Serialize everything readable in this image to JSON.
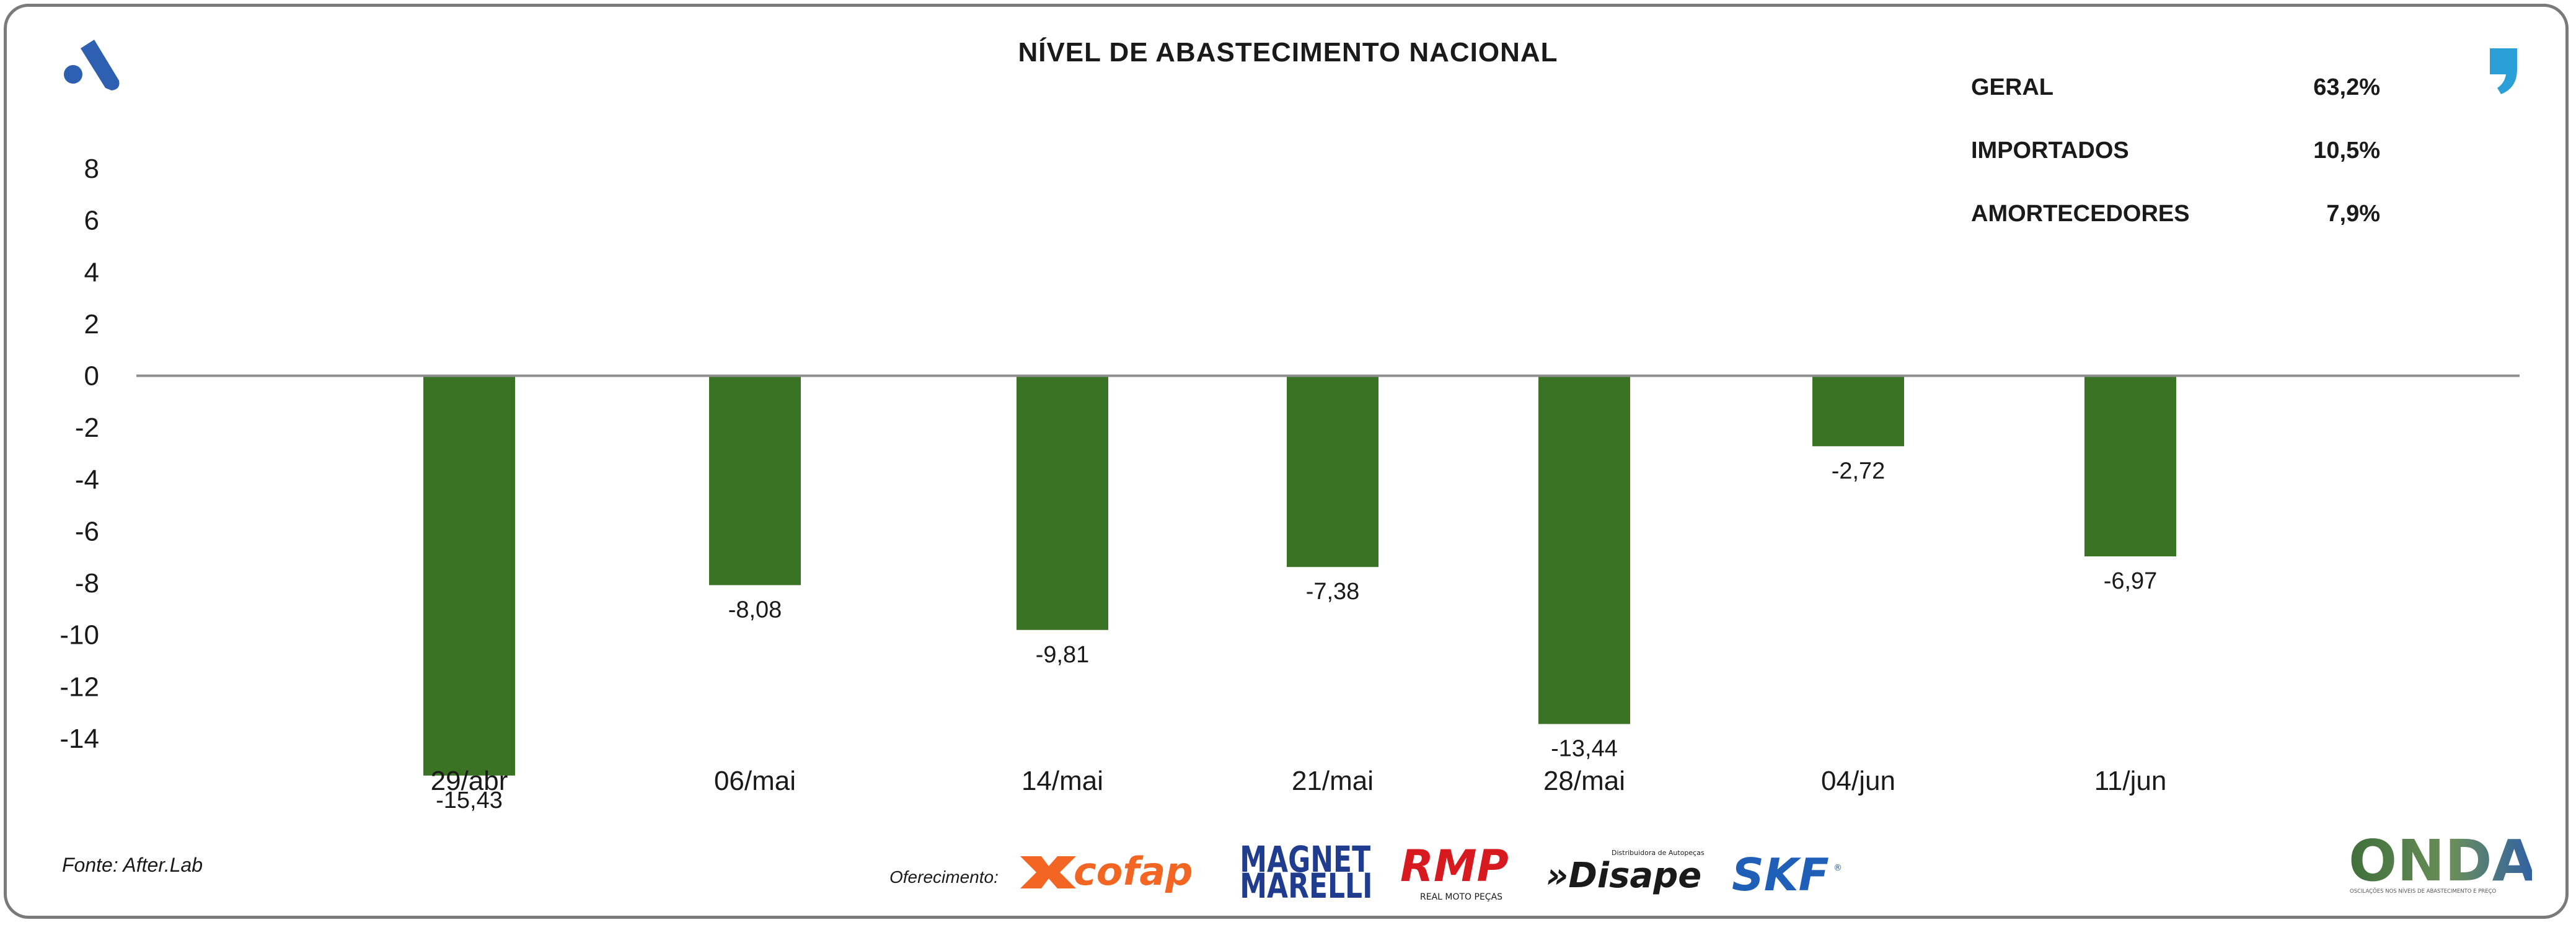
{
  "chart_data": {
    "type": "bar",
    "title": "NÍVEL DE ABASTECIMENTO NACIONAL",
    "categories": [
      "29/abr",
      "06/mai",
      "14/mai",
      "21/mai",
      "28/mai",
      "04/jun",
      "11/jun"
    ],
    "values": [
      -15.43,
      -8.08,
      -9.81,
      -7.38,
      -13.44,
      -2.72,
      -6.97
    ],
    "value_labels": [
      "-15,43",
      "-8,08",
      "-9,81",
      "-7,38",
      "-13,44",
      "-2,72",
      "-6,97"
    ],
    "yticks": [
      8,
      6,
      4,
      2,
      0,
      -2,
      -4,
      -6,
      -8,
      -10,
      -12,
      -14
    ],
    "ylim": [
      -14,
      8
    ],
    "bar_color": "#3b7324",
    "grid": false,
    "xlabel": "",
    "ylabel": ""
  },
  "stats": [
    {
      "label": "GERAL",
      "value": "63,2%"
    },
    {
      "label": "IMPORTADOS",
      "value": "10,5%"
    },
    {
      "label": "AMORTECEDORES",
      "value": "7,9%"
    }
  ],
  "footer": {
    "source": "Fonte: After.Lab",
    "sponsor_label": "Oferecimento:",
    "sponsors": [
      "cofap",
      "MAGNETI MARELLI",
      "RMP",
      "Disape",
      "SKF"
    ],
    "rmp_tagline": "REAL MOTO PEÇAS",
    "disape_tagline": "Distribuidora de Autopeças",
    "onda": "ONDA",
    "onda_tagline": "OSCILAÇÕES NOS NÍVEIS DE ABASTECIMENTO E PREÇO"
  },
  "colors": {
    "bar": "#3b7324",
    "brand_blue": "#2f5fb0",
    "quote_blue": "#2a9fd8",
    "cofap_orange": "#f26522",
    "magneti_blue": "#1f3c8f",
    "rmp_red": "#d71920",
    "skf_blue": "#1f5fb8"
  }
}
